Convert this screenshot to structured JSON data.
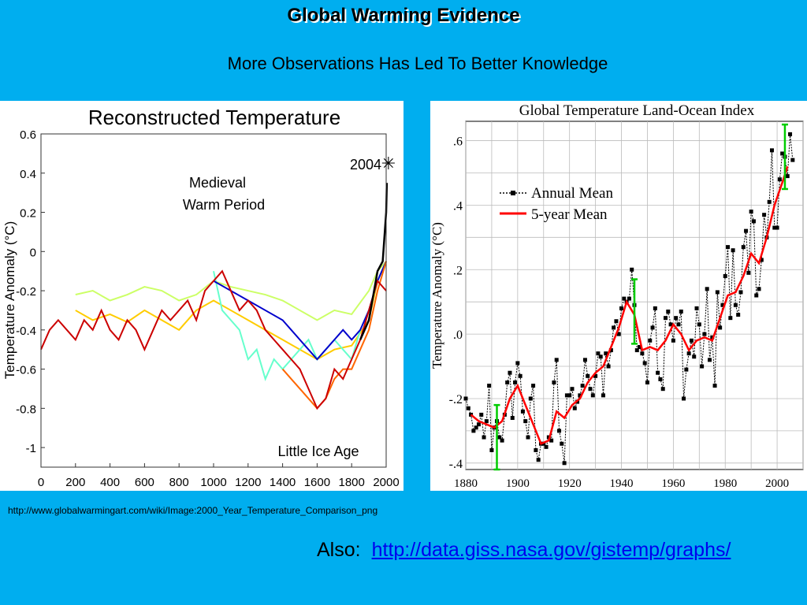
{
  "slide": {
    "title": "Global Warming Evidence",
    "subtitle": "More Observations Has Led To Better Knowledge",
    "source_url": "http://www.globalwarmingart.com/wiki/Image:2000_Year_Temperature_Comparison_png",
    "also_label": "Also:",
    "also_link": "http://data.giss.nasa.gov/gistemp/graphs/"
  },
  "chart_data": [
    {
      "type": "line",
      "title": "Reconstructed Temperature",
      "xlabel": "",
      "ylabel": "Temperature Anomaly (°C)",
      "xlim": [
        0,
        2000
      ],
      "ylim": [
        -1.1,
        0.6
      ],
      "x_ticks": [
        "0",
        "200",
        "400",
        "600",
        "800",
        "1000",
        "1200",
        "1400",
        "1600",
        "1800",
        "2000"
      ],
      "y_ticks": [
        "0.6",
        "0.4",
        "0.2",
        "0",
        "-0.2",
        "-0.4",
        "-0.6",
        "-0.8",
        "-1"
      ],
      "annotations": [
        "Medieval",
        "Warm Period",
        "Little Ice Age",
        "2004"
      ],
      "series": [
        {
          "color": "#ccff66",
          "x": [
            200,
            300,
            400,
            500,
            600,
            700,
            800,
            900,
            1000,
            1100,
            1200,
            1300,
            1400,
            1500,
            1600,
            1700,
            1800,
            1900,
            1950,
            2000
          ],
          "y": [
            -0.22,
            -0.2,
            -0.25,
            -0.22,
            -0.18,
            -0.2,
            -0.25,
            -0.22,
            -0.15,
            -0.18,
            -0.2,
            -0.22,
            -0.25,
            -0.3,
            -0.35,
            -0.3,
            -0.32,
            -0.2,
            -0.1,
            -0.05
          ]
        },
        {
          "color": "#ffcc00",
          "x": [
            200,
            300,
            400,
            500,
            600,
            700,
            800,
            900,
            1000,
            1100,
            1200,
            1300,
            1400,
            1500,
            1600,
            1700,
            1800,
            1900,
            1950,
            2000
          ],
          "y": [
            -0.3,
            -0.35,
            -0.32,
            -0.36,
            -0.3,
            -0.35,
            -0.4,
            -0.3,
            -0.25,
            -0.3,
            -0.35,
            -0.4,
            -0.45,
            -0.5,
            -0.55,
            -0.5,
            -0.48,
            -0.35,
            -0.15,
            -0.05
          ]
        },
        {
          "color": "#66ffcc",
          "x": [
            1000,
            1050,
            1100,
            1150,
            1200,
            1250,
            1300,
            1350,
            1400,
            1450,
            1500,
            1550,
            1600,
            1650,
            1700,
            1750,
            1800,
            1850,
            1900,
            1950,
            2000
          ],
          "y": [
            -0.1,
            -0.3,
            -0.35,
            -0.4,
            -0.55,
            -0.5,
            -0.65,
            -0.55,
            -0.6,
            -0.55,
            -0.5,
            -0.45,
            -0.55,
            -0.5,
            -0.45,
            -0.5,
            -0.55,
            -0.4,
            -0.3,
            -0.15,
            -0.05
          ]
        },
        {
          "color": "#0000cc",
          "x": [
            1000,
            1100,
            1200,
            1300,
            1400,
            1450,
            1500,
            1550,
            1600,
            1650,
            1700,
            1750,
            1800,
            1850,
            1900,
            1950,
            2000
          ],
          "y": [
            -0.15,
            -0.2,
            -0.25,
            -0.3,
            -0.35,
            -0.4,
            -0.45,
            -0.5,
            -0.55,
            -0.5,
            -0.45,
            -0.4,
            -0.45,
            -0.4,
            -0.3,
            -0.15,
            -0.05
          ]
        },
        {
          "color": "#ff6600",
          "x": [
            1400,
            1450,
            1500,
            1550,
            1600,
            1650,
            1700,
            1750,
            1800,
            1850,
            1900,
            1950,
            2000
          ],
          "y": [
            -0.6,
            -0.65,
            -0.7,
            -0.75,
            -0.8,
            -0.75,
            -0.65,
            -0.6,
            -0.6,
            -0.5,
            -0.4,
            -0.2,
            -0.05
          ]
        },
        {
          "color": "#cc0000",
          "x": [
            0,
            50,
            100,
            150,
            200,
            250,
            300,
            350,
            400,
            450,
            500,
            550,
            600,
            650,
            700,
            750,
            800,
            850,
            900,
            950,
            1000,
            1050,
            1100,
            1150,
            1200,
            1250,
            1300,
            1350,
            1400,
            1450,
            1500,
            1550,
            1600,
            1650,
            1700,
            1750,
            1800,
            1850,
            1900,
            1950,
            2000
          ],
          "y": [
            -0.5,
            -0.4,
            -0.35,
            -0.4,
            -0.45,
            -0.35,
            -0.4,
            -0.3,
            -0.4,
            -0.45,
            -0.35,
            -0.4,
            -0.5,
            -0.4,
            -0.3,
            -0.35,
            -0.3,
            -0.25,
            -0.35,
            -0.2,
            -0.15,
            -0.1,
            -0.2,
            -0.3,
            -0.25,
            -0.3,
            -0.4,
            -0.45,
            -0.5,
            -0.55,
            -0.6,
            -0.7,
            -0.8,
            -0.75,
            -0.6,
            -0.65,
            -0.55,
            -0.45,
            -0.3,
            -0.15,
            -0.2
          ]
        },
        {
          "color": "#000000",
          "x": [
            1850,
            1900,
            1950,
            1980,
            2000,
            2004
          ],
          "y": [
            -0.45,
            -0.35,
            -0.1,
            -0.05,
            0.2,
            0.35
          ]
        }
      ]
    },
    {
      "type": "line",
      "title": "Global Temperature Land-Ocean Index",
      "xlabel": "",
      "ylabel": "Temperature Anomaly (°C)",
      "xlim": [
        1880,
        2010
      ],
      "ylim": [
        -0.42,
        0.66
      ],
      "x_ticks": [
        "1880",
        "1900",
        "1920",
        "1940",
        "1960",
        "1980",
        "2000"
      ],
      "y_ticks": [
        ".6",
        ".4",
        ".2",
        ".0",
        "-.2",
        "-.4"
      ],
      "legend_position": "top-left",
      "series": [
        {
          "name": "Annual Mean",
          "color": "#000000",
          "x": [
            1880,
            1881,
            1882,
            1883,
            1884,
            1885,
            1886,
            1887,
            1888,
            1889,
            1890,
            1891,
            1892,
            1893,
            1894,
            1895,
            1896,
            1897,
            1898,
            1899,
            1900,
            1901,
            1902,
            1903,
            1904,
            1905,
            1906,
            1907,
            1908,
            1909,
            1910,
            1911,
            1912,
            1913,
            1914,
            1915,
            1916,
            1917,
            1918,
            1919,
            1920,
            1921,
            1922,
            1923,
            1924,
            1925,
            1926,
            1927,
            1928,
            1929,
            1930,
            1931,
            1932,
            1933,
            1934,
            1935,
            1936,
            1937,
            1938,
            1939,
            1940,
            1941,
            1942,
            1943,
            1944,
            1945,
            1946,
            1947,
            1948,
            1949,
            1950,
            1951,
            1952,
            1953,
            1954,
            1955,
            1956,
            1957,
            1958,
            1959,
            1960,
            1961,
            1962,
            1963,
            1964,
            1965,
            1966,
            1967,
            1968,
            1969,
            1970,
            1971,
            1972,
            1973,
            1974,
            1975,
            1976,
            1977,
            1978,
            1979,
            1980,
            1981,
            1982,
            1983,
            1984,
            1985,
            1986,
            1987,
            1988,
            1989,
            1990,
            1991,
            1992,
            1993,
            1994,
            1995,
            1996,
            1997,
            1998,
            1999,
            2000,
            2001,
            2002,
            2003,
            2004,
            2005,
            2006
          ],
          "y": [
            -0.2,
            -0.23,
            -0.25,
            -0.3,
            -0.29,
            -0.28,
            -0.25,
            -0.32,
            -0.27,
            -0.16,
            -0.36,
            -0.29,
            -0.27,
            -0.32,
            -0.33,
            -0.25,
            -0.15,
            -0.12,
            -0.26,
            -0.15,
            -0.09,
            -0.13,
            -0.24,
            -0.27,
            -0.32,
            -0.2,
            -0.16,
            -0.36,
            -0.39,
            -0.34,
            -0.34,
            -0.35,
            -0.32,
            -0.33,
            -0.15,
            -0.08,
            -0.3,
            -0.34,
            -0.4,
            -0.19,
            -0.19,
            -0.17,
            -0.23,
            -0.21,
            -0.19,
            -0.16,
            -0.08,
            -0.13,
            -0.17,
            -0.19,
            -0.13,
            -0.06,
            -0.07,
            -0.19,
            -0.06,
            -0.1,
            -0.05,
            0.02,
            0.04,
            0.0,
            0.08,
            0.11,
            0.1,
            0.11,
            0.2,
            0.09,
            -0.05,
            -0.04,
            -0.06,
            -0.09,
            -0.15,
            -0.02,
            0.02,
            0.08,
            -0.12,
            -0.14,
            -0.17,
            0.05,
            0.07,
            0.03,
            -0.02,
            0.05,
            0.03,
            0.07,
            -0.2,
            -0.11,
            -0.06,
            -0.02,
            -0.07,
            0.08,
            0.03,
            -0.1,
            0.0,
            0.14,
            -0.08,
            -0.01,
            -0.16,
            0.13,
            0.02,
            0.09,
            0.18,
            0.27,
            0.05,
            0.26,
            0.09,
            0.06,
            0.13,
            0.27,
            0.32,
            0.19,
            0.38,
            0.35,
            0.12,
            0.14,
            0.23,
            0.37,
            0.3,
            0.41,
            0.57,
            0.33,
            0.33,
            0.48,
            0.56,
            0.55,
            0.49,
            0.62,
            0.54
          ]
        },
        {
          "name": "5-year Mean",
          "color": "#ff0000",
          "x": [
            1882,
            1885,
            1888,
            1891,
            1894,
            1897,
            1900,
            1903,
            1906,
            1909,
            1912,
            1915,
            1918,
            1921,
            1924,
            1927,
            1930,
            1933,
            1936,
            1939,
            1942,
            1945,
            1948,
            1951,
            1954,
            1957,
            1960,
            1963,
            1966,
            1969,
            1972,
            1975,
            1978,
            1981,
            1984,
            1987,
            1990,
            1993,
            1996,
            1999,
            2002,
            2004
          ],
          "y": [
            -0.25,
            -0.27,
            -0.28,
            -0.29,
            -0.27,
            -0.2,
            -0.16,
            -0.22,
            -0.28,
            -0.34,
            -0.33,
            -0.24,
            -0.26,
            -0.22,
            -0.2,
            -0.15,
            -0.12,
            -0.1,
            -0.04,
            0.02,
            0.1,
            0.06,
            -0.05,
            -0.04,
            -0.05,
            -0.02,
            0.03,
            0.0,
            -0.05,
            -0.02,
            -0.01,
            -0.02,
            0.05,
            0.12,
            0.13,
            0.18,
            0.25,
            0.22,
            0.3,
            0.4,
            0.47,
            0.52
          ]
        },
        {
          "color": "#00cc00",
          "x": [
            1892,
            1945,
            2003
          ],
          "y": [
            -0.32,
            0.07,
            0.55
          ]
        }
      ]
    }
  ]
}
